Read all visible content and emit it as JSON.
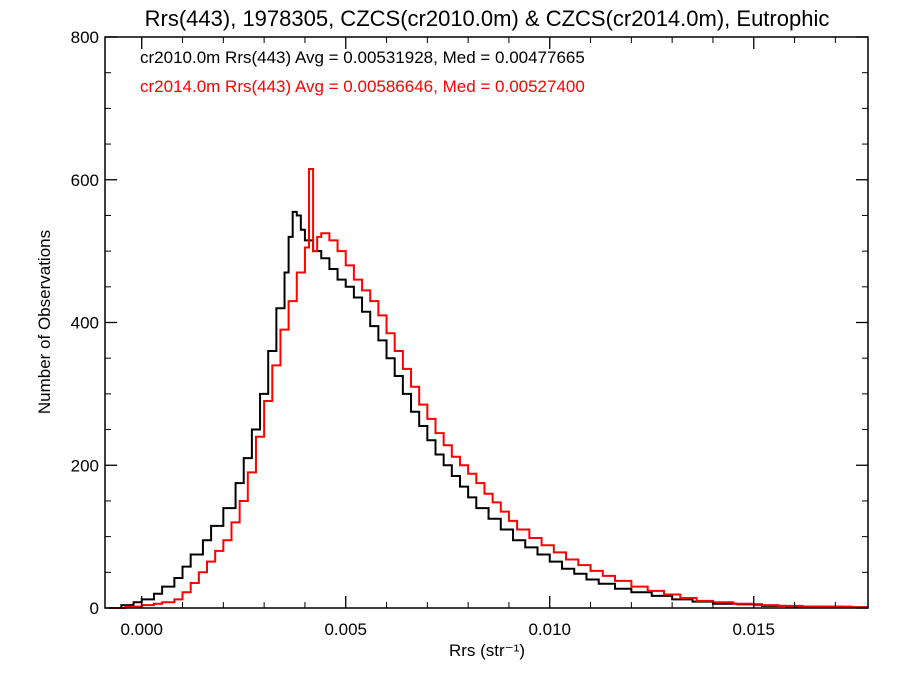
{
  "chart_data": {
    "type": "line",
    "step": true,
    "title": "Rrs(443), 1978305, CZCS(cr2010.0m) & CZCS(cr2014.0m), Eutrophic",
    "xlabel": "Rrs (str⁻¹)",
    "ylabel": "Number of Observations",
    "xlim": [
      -0.0009,
      0.0178
    ],
    "ylim": [
      0,
      800
    ],
    "xticks": [
      0.0,
      0.005,
      0.01,
      0.015
    ],
    "xtick_labels": [
      "0.000",
      "0.005",
      "0.010",
      "0.015"
    ],
    "yticks": [
      0,
      200,
      400,
      600,
      800
    ],
    "ytick_labels": [
      "0",
      "200",
      "400",
      "600",
      "800"
    ],
    "grid": false,
    "legend_position": "top-left",
    "series": [
      {
        "name": "cr2010.0m",
        "color": "#000000",
        "legend_text": "cr2010.0m Rrs(443) Avg = 0.00531928, Med = 0.00477665",
        "points": [
          [
            -0.0008,
            0
          ],
          [
            -0.0005,
            4
          ],
          [
            -0.0002,
            8
          ],
          [
            0.0,
            12
          ],
          [
            0.0003,
            20
          ],
          [
            0.0005,
            30
          ],
          [
            0.0008,
            42
          ],
          [
            0.001,
            58
          ],
          [
            0.0012,
            75
          ],
          [
            0.0015,
            95
          ],
          [
            0.0017,
            115
          ],
          [
            0.002,
            140
          ],
          [
            0.0023,
            175
          ],
          [
            0.0025,
            210
          ],
          [
            0.0027,
            250
          ],
          [
            0.0029,
            300
          ],
          [
            0.0031,
            360
          ],
          [
            0.0033,
            420
          ],
          [
            0.0035,
            470
          ],
          [
            0.0036,
            520
          ],
          [
            0.0037,
            555
          ],
          [
            0.0038,
            550
          ],
          [
            0.0039,
            530
          ],
          [
            0.004,
            515
          ],
          [
            0.0042,
            500
          ],
          [
            0.0044,
            490
          ],
          [
            0.0046,
            475
          ],
          [
            0.0048,
            460
          ],
          [
            0.005,
            450
          ],
          [
            0.0052,
            435
          ],
          [
            0.0054,
            415
          ],
          [
            0.0056,
            395
          ],
          [
            0.0058,
            375
          ],
          [
            0.006,
            350
          ],
          [
            0.0062,
            325
          ],
          [
            0.0064,
            300
          ],
          [
            0.0066,
            275
          ],
          [
            0.0068,
            255
          ],
          [
            0.007,
            235
          ],
          [
            0.0072,
            215
          ],
          [
            0.0074,
            200
          ],
          [
            0.0076,
            185
          ],
          [
            0.0078,
            170
          ],
          [
            0.008,
            155
          ],
          [
            0.0082,
            140
          ],
          [
            0.0085,
            125
          ],
          [
            0.0088,
            110
          ],
          [
            0.0091,
            95
          ],
          [
            0.0094,
            85
          ],
          [
            0.0097,
            75
          ],
          [
            0.01,
            65
          ],
          [
            0.0103,
            55
          ],
          [
            0.0106,
            48
          ],
          [
            0.0109,
            40
          ],
          [
            0.0112,
            34
          ],
          [
            0.0116,
            27
          ],
          [
            0.012,
            22
          ],
          [
            0.0125,
            17
          ],
          [
            0.013,
            12
          ],
          [
            0.0135,
            9
          ],
          [
            0.014,
            6
          ],
          [
            0.0146,
            5
          ],
          [
            0.0152,
            3
          ],
          [
            0.0158,
            2
          ],
          [
            0.0165,
            2
          ],
          [
            0.0172,
            1
          ],
          [
            0.0178,
            1
          ]
        ]
      },
      {
        "name": "cr2014.0m",
        "color": "#ff0000",
        "legend_text": "cr2014.0m Rrs(443) Avg = 0.00586646, Med = 0.00527400",
        "points": [
          [
            -0.0008,
            0
          ],
          [
            -0.0004,
            2
          ],
          [
            0.0,
            4
          ],
          [
            0.0003,
            6
          ],
          [
            0.0005,
            8
          ],
          [
            0.0008,
            12
          ],
          [
            0.001,
            22
          ],
          [
            0.0012,
            35
          ],
          [
            0.0014,
            50
          ],
          [
            0.0016,
            65
          ],
          [
            0.0018,
            80
          ],
          [
            0.002,
            95
          ],
          [
            0.0022,
            120
          ],
          [
            0.0024,
            150
          ],
          [
            0.0026,
            190
          ],
          [
            0.0028,
            240
          ],
          [
            0.003,
            290
          ],
          [
            0.0032,
            340
          ],
          [
            0.0034,
            390
          ],
          [
            0.0036,
            430
          ],
          [
            0.0038,
            470
          ],
          [
            0.004,
            505
          ],
          [
            0.0041,
            615
          ],
          [
            0.0042,
            500
          ],
          [
            0.0043,
            520
          ],
          [
            0.0044,
            525
          ],
          [
            0.0046,
            515
          ],
          [
            0.0048,
            500
          ],
          [
            0.005,
            480
          ],
          [
            0.0052,
            460
          ],
          [
            0.0054,
            445
          ],
          [
            0.0056,
            430
          ],
          [
            0.0058,
            410
          ],
          [
            0.006,
            385
          ],
          [
            0.0062,
            360
          ],
          [
            0.0064,
            335
          ],
          [
            0.0066,
            310
          ],
          [
            0.0068,
            285
          ],
          [
            0.007,
            265
          ],
          [
            0.0072,
            245
          ],
          [
            0.0074,
            228
          ],
          [
            0.0076,
            212
          ],
          [
            0.0078,
            200
          ],
          [
            0.008,
            188
          ],
          [
            0.0082,
            175
          ],
          [
            0.0084,
            160
          ],
          [
            0.0086,
            148
          ],
          [
            0.0088,
            135
          ],
          [
            0.009,
            122
          ],
          [
            0.0092,
            110
          ],
          [
            0.0095,
            98
          ],
          [
            0.0098,
            88
          ],
          [
            0.0101,
            78
          ],
          [
            0.0104,
            68
          ],
          [
            0.0107,
            60
          ],
          [
            0.011,
            52
          ],
          [
            0.0113,
            45
          ],
          [
            0.0116,
            38
          ],
          [
            0.012,
            30
          ],
          [
            0.0124,
            24
          ],
          [
            0.0128,
            19
          ],
          [
            0.0132,
            14
          ],
          [
            0.0136,
            10
          ],
          [
            0.014,
            8
          ],
          [
            0.0145,
            6
          ],
          [
            0.015,
            4
          ],
          [
            0.0156,
            3
          ],
          [
            0.0162,
            2
          ],
          [
            0.0168,
            2
          ],
          [
            0.0174,
            1
          ],
          [
            0.0178,
            1
          ]
        ]
      }
    ]
  }
}
